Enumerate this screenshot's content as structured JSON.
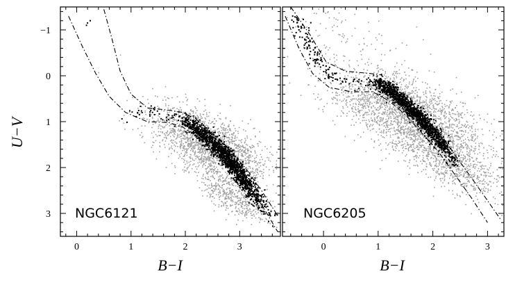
{
  "chart_data": [
    {
      "type": "scatter",
      "panel_label": "NGC6121",
      "xlabel": "B−I",
      "ylabel": "U−V",
      "xlim": [
        -0.3,
        3.75
      ],
      "ylim": [
        3.5,
        -1.5
      ],
      "y_inverted": true,
      "x_ticks": [
        "0",
        "1",
        "2",
        "3"
      ],
      "y_ticks": [
        "−1",
        "0",
        "1",
        "2",
        "3"
      ],
      "grid": false,
      "series": [
        {
          "role": "all stars",
          "color": "#a0a0a0",
          "clouds": [
            {
              "center": [
                2.45,
                1.5
              ],
              "angle_deg": 32,
              "sx": 0.62,
              "sy": 0.28,
              "count": 1800
            },
            {
              "center": [
                2.9,
                2.6
              ],
              "angle_deg": 40,
              "sx": 0.45,
              "sy": 0.18,
              "count": 500
            }
          ]
        },
        {
          "role": "selected stars",
          "color": "#000000",
          "ridge": [
            [
              0.85,
              0.85
            ],
            [
              1.3,
              0.82
            ],
            [
              1.7,
              0.85
            ],
            [
              1.95,
              0.95
            ],
            [
              2.2,
              1.15
            ],
            [
              2.5,
              1.45
            ],
            [
              2.75,
              1.75
            ],
            [
              2.95,
              2.05
            ],
            [
              3.15,
              2.4
            ],
            [
              3.35,
              2.75
            ],
            [
              3.55,
              3.1
            ]
          ],
          "ridge_counts": [
            12,
            15,
            15,
            120,
            260,
            300,
            300,
            260,
            140,
            40,
            20
          ],
          "ridge_scatter": [
            0.07,
            0.08
          ],
          "extra_points": [
            [
              0.2,
              -1.15
            ],
            [
              0.25,
              -1.2
            ],
            [
              0.18,
              -1.1
            ]
          ]
        }
      ],
      "envelope": {
        "style": "dash-dot",
        "color": "#000000",
        "left": [
          [
            -0.15,
            -1.3
          ],
          [
            0.1,
            -0.65
          ],
          [
            0.35,
            -0.05
          ],
          [
            0.6,
            0.45
          ],
          [
            0.9,
            0.8
          ],
          [
            1.3,
            1.0
          ],
          [
            1.7,
            1.02
          ],
          [
            1.95,
            1.12
          ],
          [
            2.2,
            1.3
          ],
          [
            2.5,
            1.6
          ],
          [
            2.8,
            1.95
          ],
          [
            3.1,
            2.35
          ],
          [
            3.4,
            2.8
          ],
          [
            3.7,
            3.4
          ]
        ],
        "right": [
          [
            0.5,
            -1.45
          ],
          [
            0.65,
            -0.8
          ],
          [
            0.8,
            -0.1
          ],
          [
            1.0,
            0.4
          ],
          [
            1.3,
            0.7
          ],
          [
            1.7,
            0.75
          ],
          [
            1.95,
            0.8
          ],
          [
            2.2,
            0.95
          ],
          [
            2.5,
            1.25
          ],
          [
            2.8,
            1.6
          ],
          [
            3.1,
            2.0
          ],
          [
            3.4,
            2.5
          ],
          [
            3.7,
            3.05
          ]
        ]
      }
    },
    {
      "type": "scatter",
      "panel_label": "NGC6205",
      "xlabel": "B−I",
      "ylabel": "",
      "xlim": [
        -0.75,
        3.3
      ],
      "ylim": [
        3.5,
        -1.5
      ],
      "y_inverted": true,
      "x_ticks": [
        "0",
        "1",
        "2",
        "3"
      ],
      "y_ticks": [],
      "grid": false,
      "series": [
        {
          "role": "all stars",
          "color": "#a0a0a0",
          "clouds": [
            {
              "center": [
                1.55,
                0.85
              ],
              "angle_deg": 30,
              "sx": 0.75,
              "sy": 0.35,
              "count": 2200
            },
            {
              "center": [
                2.35,
                1.9
              ],
              "angle_deg": 38,
              "sx": 0.55,
              "sy": 0.25,
              "count": 700
            },
            {
              "center": [
                0.5,
                -0.5
              ],
              "angle_deg": 45,
              "sx": 0.9,
              "sy": 0.5,
              "count": 180
            }
          ]
        },
        {
          "role": "selected stars",
          "color": "#000000",
          "ridge": [
            [
              -0.5,
              -1.25
            ],
            [
              -0.3,
              -0.75
            ],
            [
              -0.1,
              -0.3
            ],
            [
              0.2,
              0.1
            ],
            [
              0.6,
              0.15
            ],
            [
              0.95,
              0.12
            ],
            [
              1.15,
              0.25
            ],
            [
              1.45,
              0.55
            ],
            [
              1.75,
              0.9
            ],
            [
              2.0,
              1.25
            ],
            [
              2.2,
              1.55
            ],
            [
              2.4,
              1.9
            ]
          ],
          "ridge_counts": [
            40,
            40,
            30,
            15,
            15,
            120,
            300,
            320,
            300,
            200,
            80,
            30
          ],
          "ridge_scatter": [
            0.06,
            0.07
          ],
          "extra_points": []
        }
      ],
      "envelope": {
        "style": "dash-dot",
        "color": "#000000",
        "left": [
          [
            -0.7,
            -1.3
          ],
          [
            -0.45,
            -0.6
          ],
          [
            -0.2,
            -0.05
          ],
          [
            0.1,
            0.25
          ],
          [
            0.5,
            0.35
          ],
          [
            0.9,
            0.35
          ],
          [
            1.2,
            0.55
          ],
          [
            1.5,
            0.85
          ],
          [
            1.8,
            1.25
          ],
          [
            2.1,
            1.65
          ],
          [
            2.4,
            2.15
          ],
          [
            2.7,
            2.65
          ],
          [
            3.0,
            3.2
          ]
        ],
        "right": [
          [
            -0.6,
            -1.5
          ],
          [
            -0.25,
            -0.9
          ],
          [
            0.05,
            -0.3
          ],
          [
            0.4,
            -0.1
          ],
          [
            0.85,
            -0.05
          ],
          [
            1.05,
            -0.02
          ],
          [
            1.35,
            0.3
          ],
          [
            1.7,
            0.7
          ],
          [
            2.0,
            1.1
          ],
          [
            2.3,
            1.55
          ],
          [
            2.6,
            2.05
          ],
          [
            2.9,
            2.55
          ],
          [
            3.25,
            3.15
          ]
        ]
      }
    }
  ]
}
